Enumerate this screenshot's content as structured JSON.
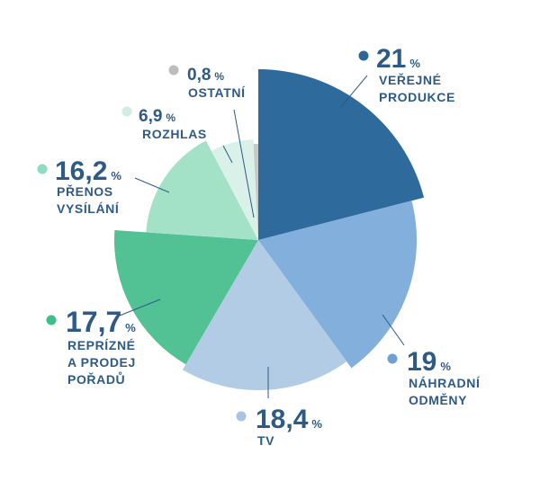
{
  "chart_data": {
    "type": "pie",
    "title": "",
    "slices": [
      {
        "label": [
          "VEŘEJNÉ",
          "PRODUKCE"
        ],
        "value": 21,
        "value_text": "21",
        "unit": "%",
        "color": "#2e6a9c",
        "marker": "#2b6696"
      },
      {
        "label": [
          "NÁHRADNÍ",
          "ODMĚNY"
        ],
        "value": 19,
        "value_text": "19",
        "unit": "%",
        "color": "#82afdb",
        "marker": "#6f9fd3"
      },
      {
        "label": [
          "TV"
        ],
        "value": 18.4,
        "value_text": "18,4",
        "unit": "%",
        "color": "#b2cce5",
        "marker": "#a9c3e2"
      },
      {
        "label": [
          "REPRÍZNÉ",
          "A PRODEJ",
          "POŘADŮ"
        ],
        "value": 17.7,
        "value_text": "17,7",
        "unit": "%",
        "color": "#52c194",
        "marker": "#3dbf8a"
      },
      {
        "label": [
          "PŘENOS",
          "VYSÍLÁNÍ"
        ],
        "value": 16.2,
        "value_text": "16,2",
        "unit": "%",
        "color": "#a4e2c8",
        "marker": "#8edbbd"
      },
      {
        "label": [
          "ROZHLAS"
        ],
        "value": 6.9,
        "value_text": "6,9",
        "unit": "%",
        "color": "#d9f1e8",
        "marker": "#cfeee2"
      },
      {
        "label": [
          "OSTATNÍ"
        ],
        "value": 0.8,
        "value_text": "0,8",
        "unit": "%",
        "color": "#c8c8c8",
        "marker": "#bdbdbd"
      }
    ],
    "value_color": "#2d5a86",
    "label_color": "#2d5a86",
    "leader_color": "#2d5a86"
  }
}
